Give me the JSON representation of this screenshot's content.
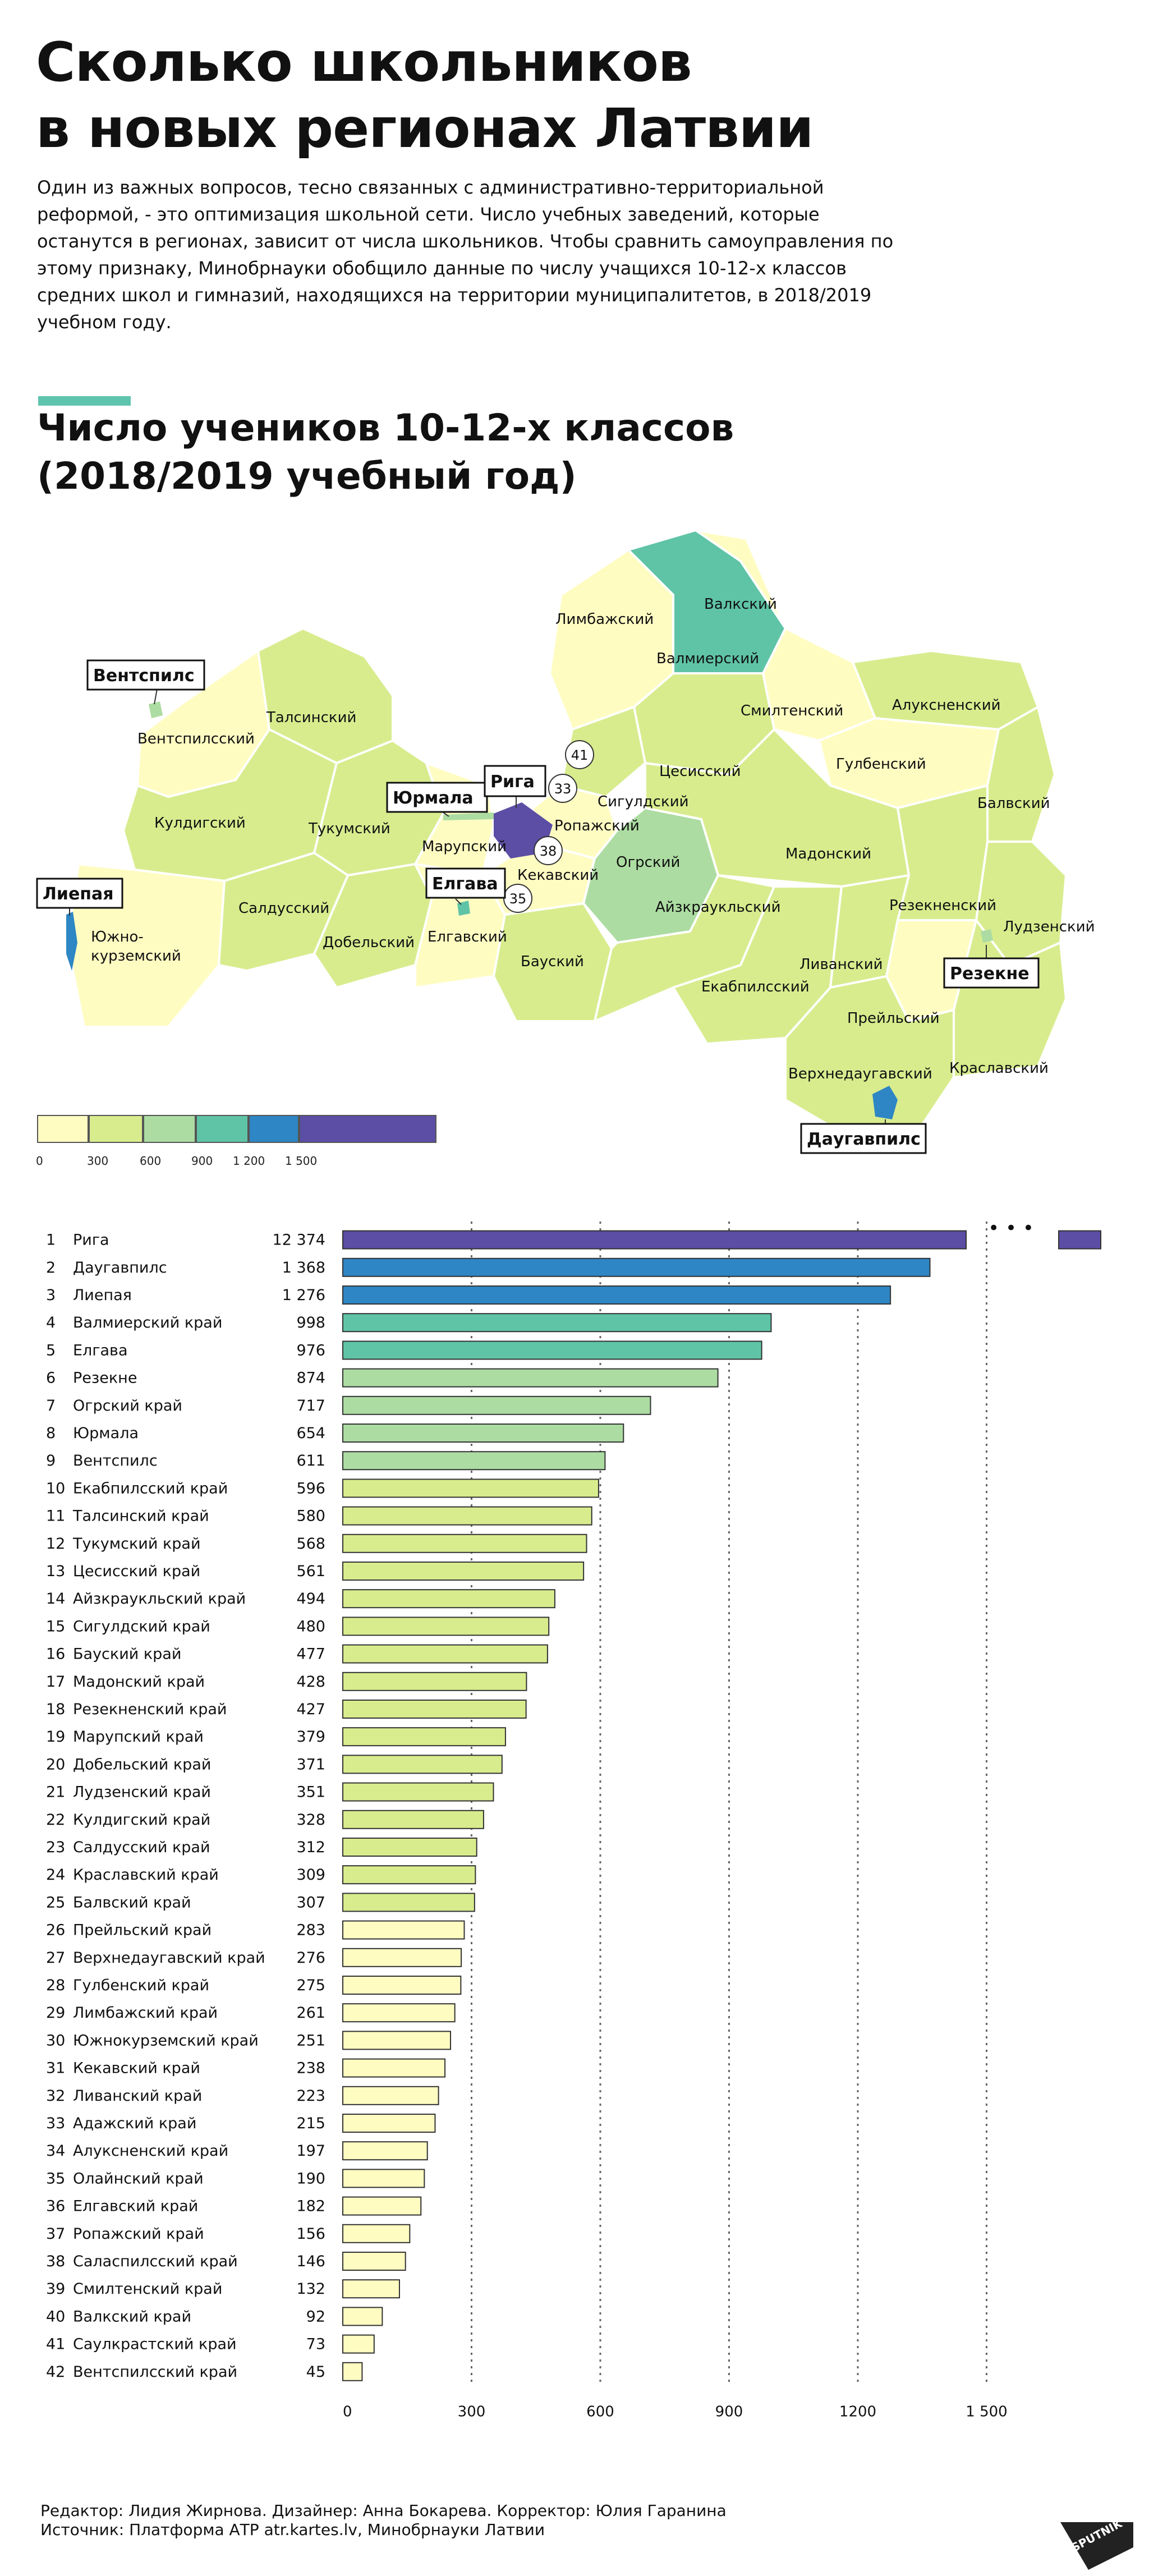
{
  "title_line1": "Сколько школьников",
  "title_line2": "в новых регионах Латвии",
  "lead": "Один из важных вопросов, тесно связанных с административно-территориальной реформой, - это оптимизация школьной сети. Число учебных заведений, которые останутся в регионах, зависит от числа школьников. Чтобы сравнить самоуправления по этому признаку, Минобрнауки обобщило данные по числу учащихся 10-12-х классов средних школ и гимназий, находящихся на территории муниципалитетов, в 2018/2019 учебном году.",
  "chart_title_line1": "Число учеников 10-12-х классов",
  "chart_title_line2": "(2018/2019 учебный год)",
  "colors": {
    "accent": "#5fc4ad",
    "c0": "#fffcc2",
    "c300": "#d8ec8e",
    "c600": "#acdca2",
    "c900": "#5fc4a6",
    "c1200": "#2e86c4",
    "c1500": "#5b4ea4",
    "map_stroke": "#ffffff"
  },
  "legend": {
    "ticks": [
      "0",
      "300",
      "600",
      "900",
      "1 200",
      "1 500"
    ]
  },
  "map_labels": {
    "limbazi": "Лимбажский",
    "valka": "Валкский",
    "valmiera": "Валмиерский",
    "ventspils_kr": "Вентспилсский",
    "talsi": "Талсинский",
    "smiltene": "Смилтенский",
    "aluksne": "Алуксненский",
    "gulbene": "Гулбенский",
    "cesis": "Цесисский",
    "sigulda": "Сигулдский",
    "balvi": "Балвский",
    "kuldiga": "Кулдигский",
    "tukums": "Тукумский",
    "marupe": "Марупский",
    "ropazi": "Ропажский",
    "kekava": "Кекавский",
    "ogre": "Огрский",
    "madona": "Мадонский",
    "aizkraukle": "Айзкраукльский",
    "saldus": "Салдусский",
    "dobele": "Добельский",
    "jelgava_kr": "Елгавский",
    "rezekne_kr": "Резекненский",
    "ludza": "Лудзенский",
    "bauska": "Бауский",
    "livani": "Ливанский",
    "jekabpils": "Екабпилсский",
    "preili": "Прейльский",
    "kraslava": "Краславский",
    "augsdaugava": "Верхнедаугавский",
    "south_kurz_1": "Южно-",
    "south_kurz_2": "курземский"
  },
  "city_callouts": {
    "ventspils": "Вентспилс",
    "jurmala": "Юрмала",
    "riga": "Рига",
    "jelgava": "Елгава",
    "liepaja": "Лиепая",
    "rezekne": "Резекне",
    "daugavpils": "Даугавпилс"
  },
  "map_circles": {
    "c41": "41",
    "c33": "33",
    "c38": "38",
    "c35": "35"
  },
  "ellipsis": "• • •",
  "chart_data": {
    "type": "bar",
    "orientation": "horizontal",
    "x_ticks": [
      "0",
      "300",
      "600",
      "900",
      "1200",
      "1 500"
    ],
    "xlim": [
      0,
      1500
    ],
    "axis_break_note": "",
    "rows": [
      {
        "rank": "1",
        "name": "Рига",
        "value": 12374,
        "label": "12 374"
      },
      {
        "rank": "2",
        "name": "Даугавпилс",
        "value": 1368,
        "label": "1 368"
      },
      {
        "rank": "3",
        "name": "Лиепая",
        "value": 1276,
        "label": "1 276"
      },
      {
        "rank": "4",
        "name": "Валмиерский край",
        "value": 998,
        "label": "998"
      },
      {
        "rank": "5",
        "name": "Елгава",
        "value": 976,
        "label": "976"
      },
      {
        "rank": "6",
        "name": "Резекне",
        "value": 874,
        "label": "874"
      },
      {
        "rank": "7",
        "name": "Огрский край",
        "value": 717,
        "label": "717"
      },
      {
        "rank": "8",
        "name": "Юрмала",
        "value": 654,
        "label": "654"
      },
      {
        "rank": "9",
        "name": "Вентспилс",
        "value": 611,
        "label": "611"
      },
      {
        "rank": "10",
        "name": "Екабпилсский край",
        "value": 596,
        "label": "596"
      },
      {
        "rank": "11",
        "name": "Талсинский край",
        "value": 580,
        "label": "580"
      },
      {
        "rank": "12",
        "name": "Тукумский край",
        "value": 568,
        "label": "568"
      },
      {
        "rank": "13",
        "name": "Цесисский край",
        "value": 561,
        "label": "561"
      },
      {
        "rank": "14",
        "name": "Айзкраукльский край",
        "value": 494,
        "label": "494"
      },
      {
        "rank": "15",
        "name": "Сигулдский край",
        "value": 480,
        "label": "480"
      },
      {
        "rank": "16",
        "name": "Бауский край",
        "value": 477,
        "label": "477"
      },
      {
        "rank": "17",
        "name": "Мадонский край",
        "value": 428,
        "label": "428"
      },
      {
        "rank": "18",
        "name": "Резекненский край",
        "value": 427,
        "label": "427"
      },
      {
        "rank": "19",
        "name": "Марупский край",
        "value": 379,
        "label": "379"
      },
      {
        "rank": "20",
        "name": "Добельский край",
        "value": 371,
        "label": "371"
      },
      {
        "rank": "21",
        "name": "Лудзенский край",
        "value": 351,
        "label": "351"
      },
      {
        "rank": "22",
        "name": "Кулдигский край",
        "value": 328,
        "label": "328"
      },
      {
        "rank": "23",
        "name": "Салдусский край",
        "value": 312,
        "label": "312"
      },
      {
        "rank": "24",
        "name": "Краславский край",
        "value": 309,
        "label": "309"
      },
      {
        "rank": "25",
        "name": "Балвский край",
        "value": 307,
        "label": "307"
      },
      {
        "rank": "26",
        "name": "Прейльский край",
        "value": 283,
        "label": "283"
      },
      {
        "rank": "27",
        "name": "Верхнедаугавский край",
        "value": 276,
        "label": "276"
      },
      {
        "rank": "28",
        "name": "Гулбенский край",
        "value": 275,
        "label": "275"
      },
      {
        "rank": "29",
        "name": "Лимбажский край",
        "value": 261,
        "label": "261"
      },
      {
        "rank": "30",
        "name": "Южнокурземский край",
        "value": 251,
        "label": "251"
      },
      {
        "rank": "31",
        "name": "Кекавский край",
        "value": 238,
        "label": "238"
      },
      {
        "rank": "32",
        "name": "Ливанский край",
        "value": 223,
        "label": "223"
      },
      {
        "rank": "33",
        "name": "Адажский край",
        "value": 215,
        "label": "215"
      },
      {
        "rank": "34",
        "name": "Алуксненский край",
        "value": 197,
        "label": "197"
      },
      {
        "rank": "35",
        "name": "Олайнский край",
        "value": 190,
        "label": "190"
      },
      {
        "rank": "36",
        "name": "Елгавский край",
        "value": 182,
        "label": "182"
      },
      {
        "rank": "37",
        "name": "Ропажский край",
        "value": 156,
        "label": "156"
      },
      {
        "rank": "38",
        "name": "Саласпилсский край",
        "value": 146,
        "label": "146"
      },
      {
        "rank": "39",
        "name": "Смилтенский край",
        "value": 132,
        "label": "132"
      },
      {
        "rank": "40",
        "name": "Валкский край",
        "value": 92,
        "label": "92"
      },
      {
        "rank": "41",
        "name": "Саулкрастский край",
        "value": 73,
        "label": "73"
      },
      {
        "rank": "42",
        "name": "Вентспилсский край",
        "value": 45,
        "label": "45"
      }
    ]
  },
  "credits_line1": "Редактор: Лидия Жирнова. Дизайнер: Анна Бокарева. Корректор: Юлия Гаранина",
  "credits_line2": "Источник: Платформа АТР atr.kartes.lv, Минобрнауки Латвии",
  "logo_text": "SPUTNIK"
}
